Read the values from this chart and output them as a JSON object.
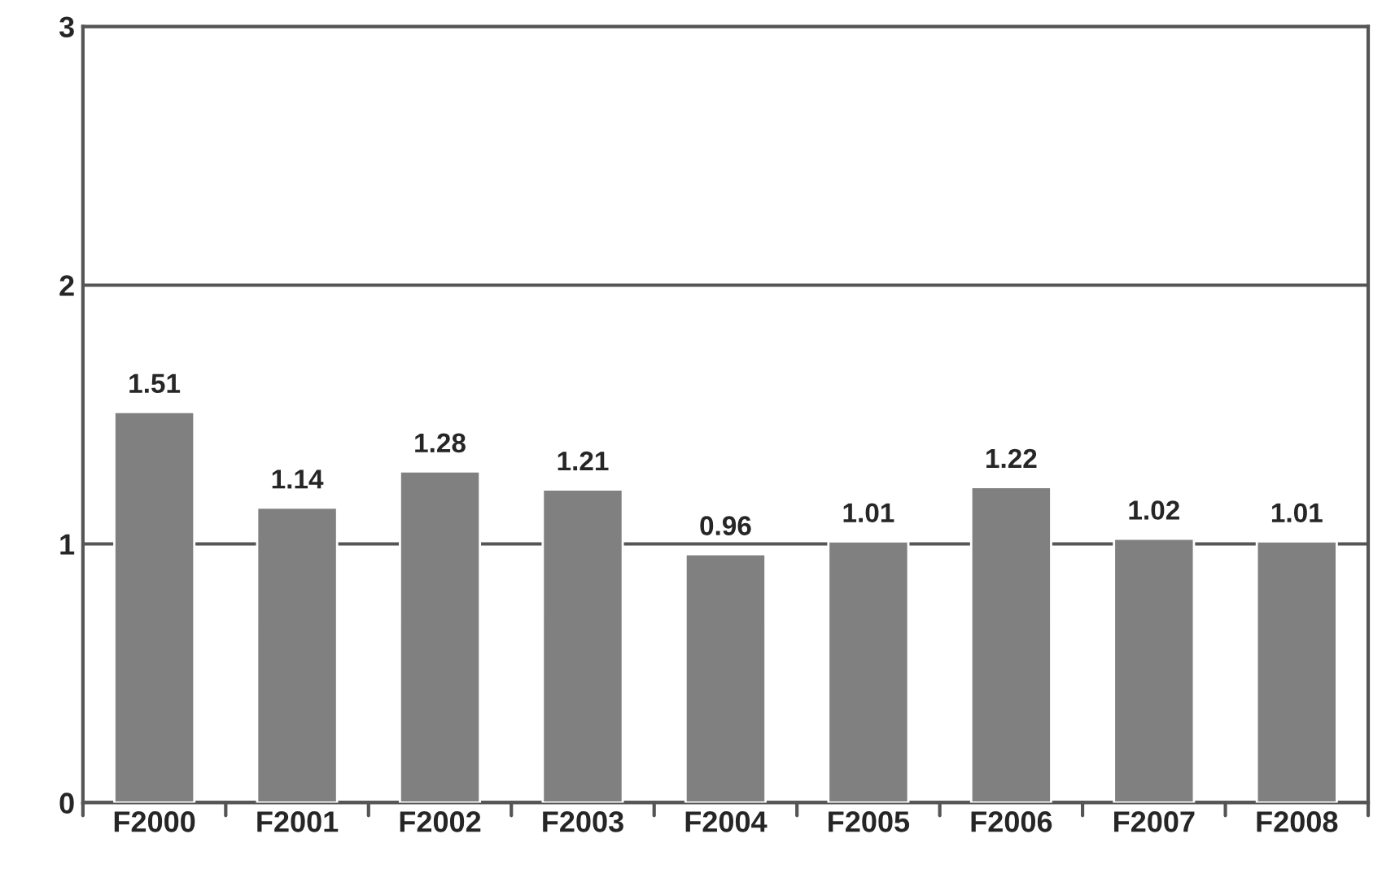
{
  "chart_data": {
    "type": "bar",
    "categories": [
      "F2000",
      "F2001",
      "F2002",
      "F2003",
      "F2004",
      "F2005",
      "F2006",
      "F2007",
      "F2008"
    ],
    "values": [
      1.51,
      1.14,
      1.28,
      1.21,
      0.96,
      1.01,
      1.22,
      1.02,
      1.01
    ],
    "color": "#808080",
    "ylim": [
      0,
      3
    ],
    "yticks": [
      0,
      1,
      2,
      3
    ],
    "grid": "y",
    "data_labels": true
  }
}
